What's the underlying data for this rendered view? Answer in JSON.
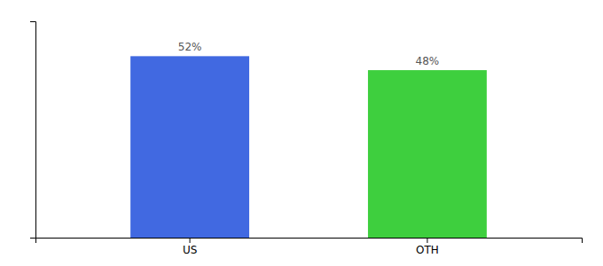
{
  "chart_data": {
    "type": "bar",
    "categories": [
      "US",
      "OTH"
    ],
    "values": [
      52,
      48
    ],
    "colors": [
      "#4169e1",
      "#3ecf3e"
    ],
    "data_labels": true,
    "value_labels": [
      "52%",
      "48%"
    ],
    "ylim": [
      0,
      62
    ],
    "yticks": [],
    "tick_labels": "x",
    "grid": false
  }
}
